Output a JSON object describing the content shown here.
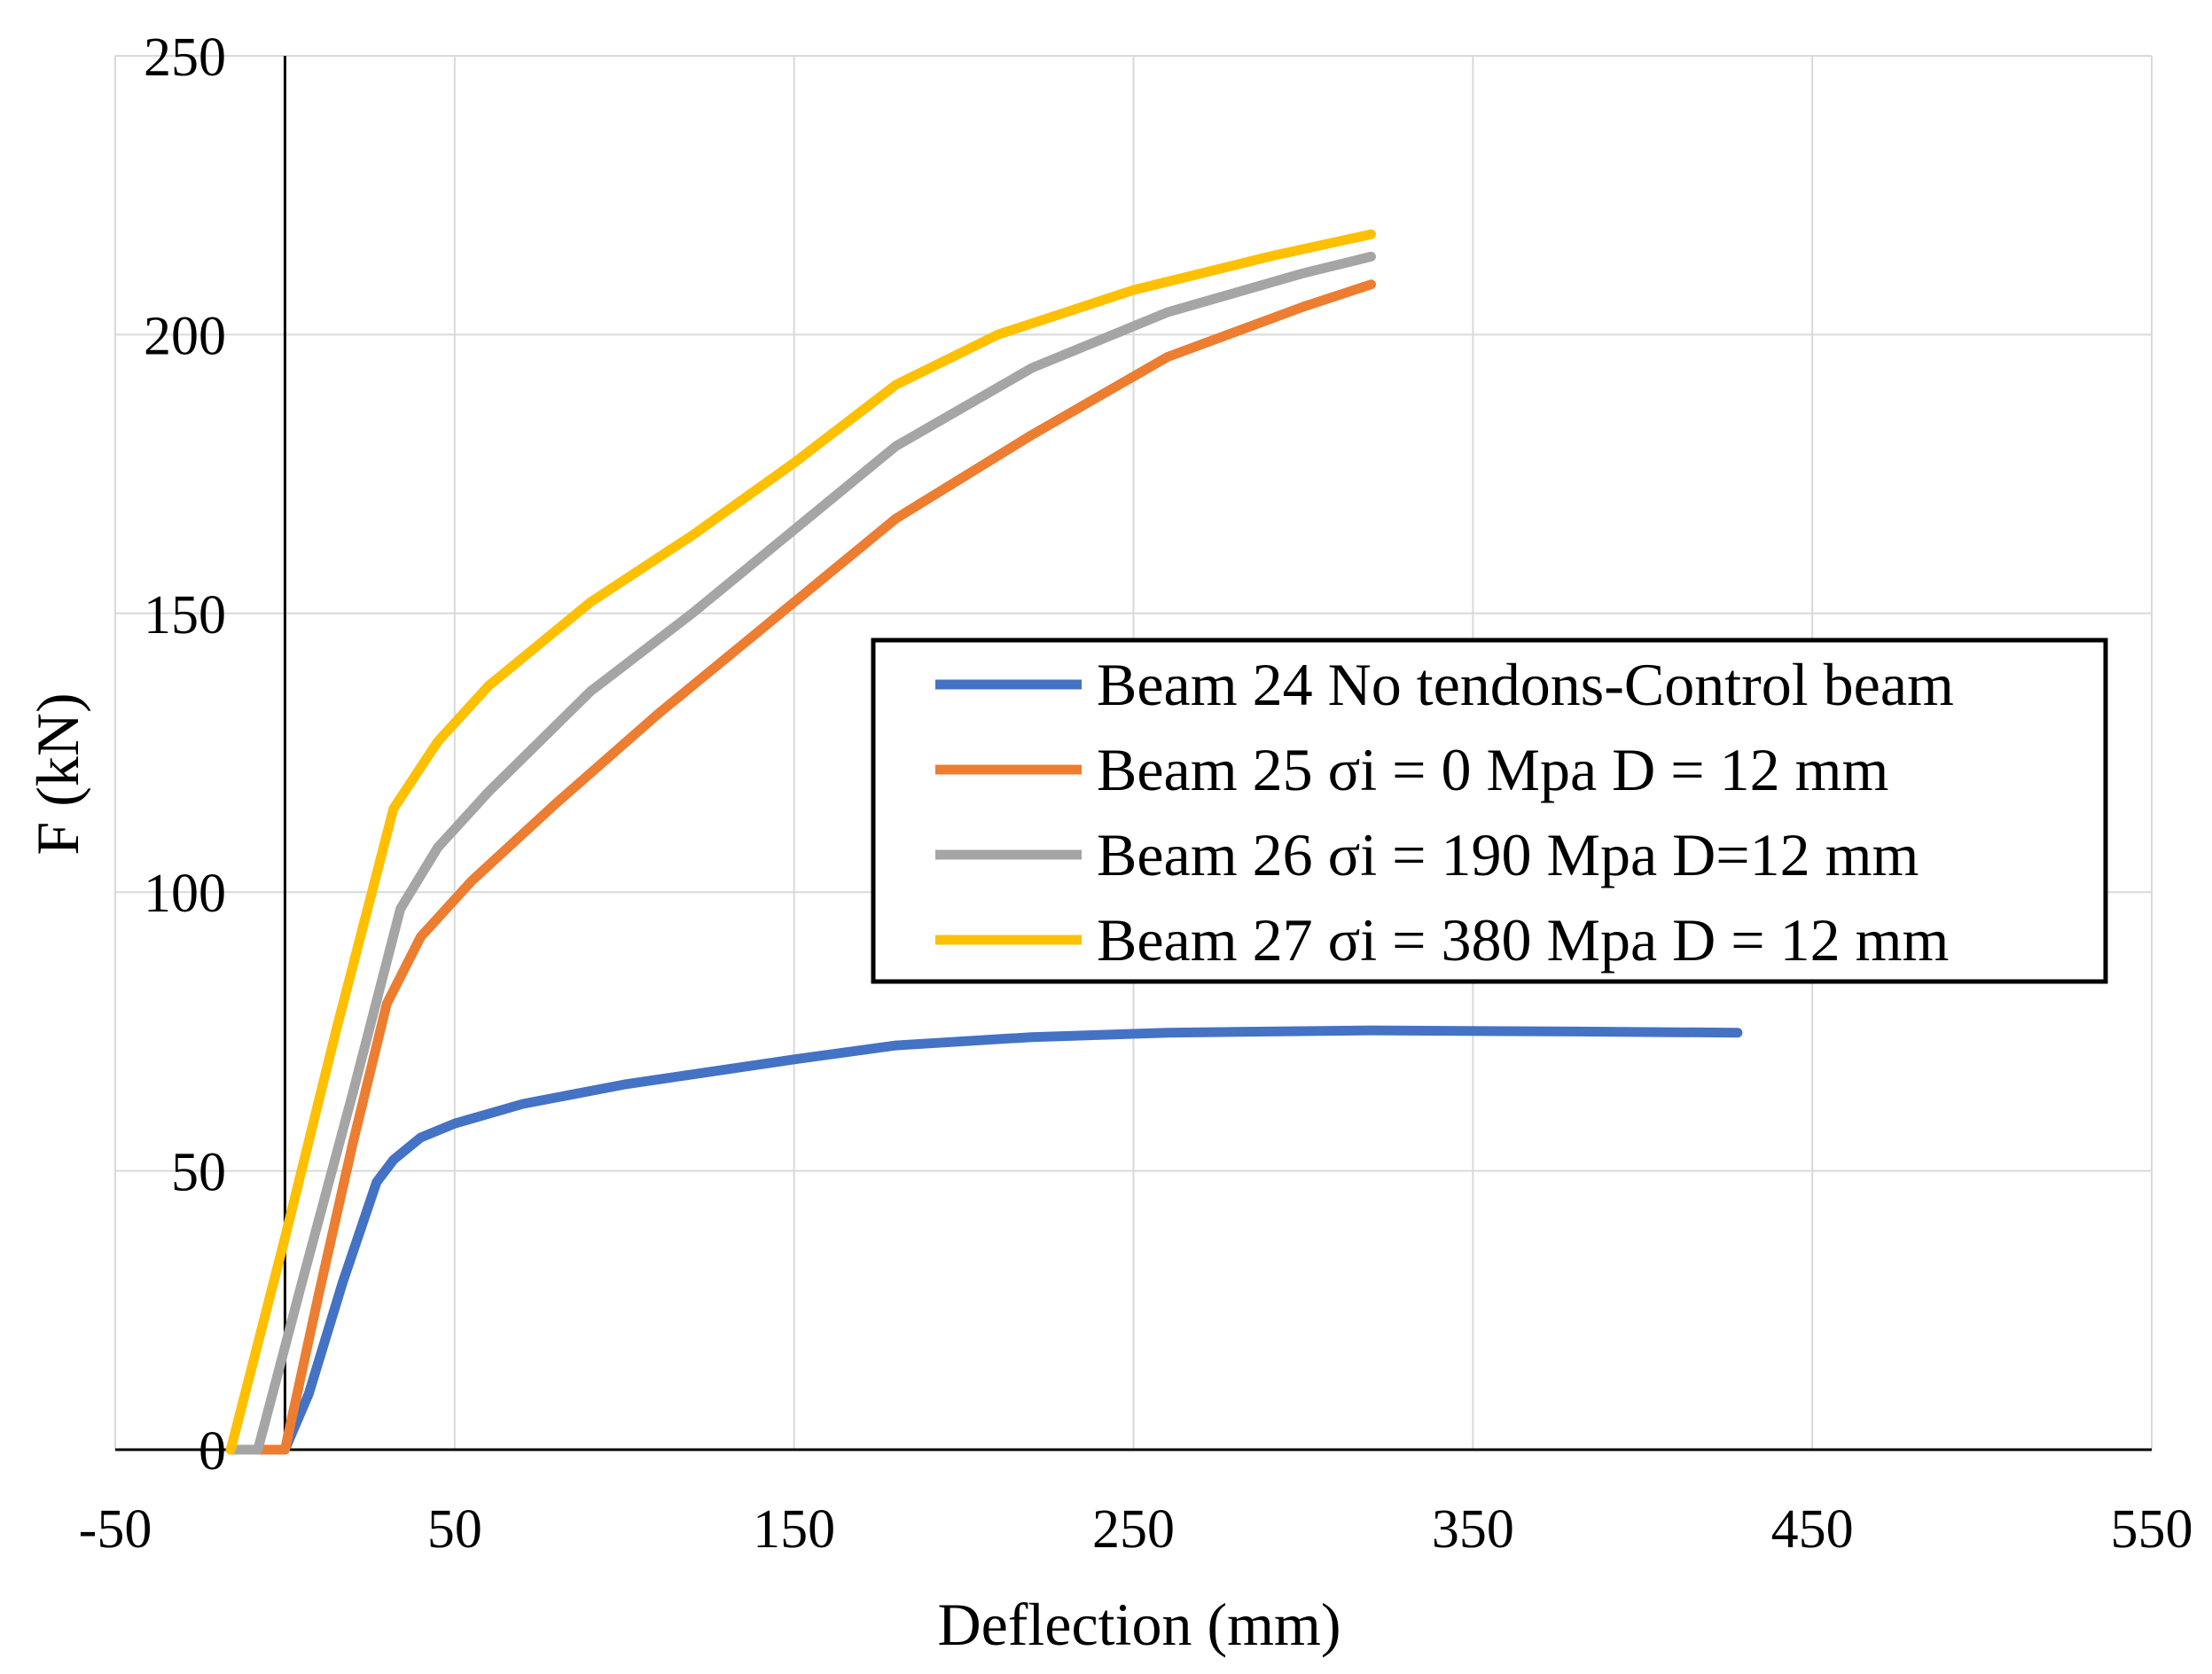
{
  "chart_data": {
    "type": "line",
    "title": "",
    "xlabel": "Deflection (mm)",
    "ylabel": "F (kN)",
    "xlim": [
      -50,
      550
    ],
    "ylim": [
      0,
      250
    ],
    "xticks": [
      -50,
      50,
      150,
      250,
      350,
      450,
      550
    ],
    "yticks": [
      0,
      50,
      100,
      150,
      200,
      250
    ],
    "grid": true,
    "legend_position": "center-right",
    "series": [
      {
        "name": "Beam 24 No tendons-Control beam",
        "color": "#4472C4",
        "points": [
          [
            0,
            0
          ],
          [
            7,
            10
          ],
          [
            17,
            30
          ],
          [
            27,
            48
          ],
          [
            32,
            52
          ],
          [
            40,
            56
          ],
          [
            50,
            58.5
          ],
          [
            70,
            62
          ],
          [
            100,
            65.5
          ],
          [
            150,
            70
          ],
          [
            180,
            72.5
          ],
          [
            220,
            74
          ],
          [
            260,
            74.8
          ],
          [
            320,
            75.2
          ],
          [
            380,
            75
          ],
          [
            428,
            74.8
          ]
        ]
      },
      {
        "name": "Beam 25 σi = 0 Mpa D = 12 mm",
        "color": "#ED7D31",
        "points": [
          [
            0,
            0
          ],
          [
            10,
            28
          ],
          [
            20,
            55
          ],
          [
            30,
            80
          ],
          [
            40,
            92
          ],
          [
            55,
            102
          ],
          [
            80,
            116
          ],
          [
            110,
            132
          ],
          [
            140,
            147
          ],
          [
            180,
            167
          ],
          [
            220,
            182
          ],
          [
            260,
            196
          ],
          [
            300,
            205
          ],
          [
            320,
            209
          ]
        ]
      },
      {
        "name": "Beam 26 σi = 190 Mpa D=12 mm",
        "color": "#A5A5A5",
        "points": [
          [
            -8,
            0
          ],
          [
            5,
            30
          ],
          [
            20,
            64
          ],
          [
            34,
            97
          ],
          [
            45,
            108
          ],
          [
            60,
            118
          ],
          [
            90,
            136
          ],
          [
            120,
            150
          ],
          [
            150,
            165
          ],
          [
            180,
            180
          ],
          [
            220,
            194
          ],
          [
            260,
            204
          ],
          [
            300,
            211
          ],
          [
            320,
            214
          ]
        ]
      },
      {
        "name": "Beam 27 σi = 380 Mpa D = 12 mm",
        "color": "#FFC000",
        "points": [
          [
            -16,
            0
          ],
          [
            0,
            38
          ],
          [
            15,
            75
          ],
          [
            32,
            115
          ],
          [
            45,
            127
          ],
          [
            60,
            137
          ],
          [
            90,
            152
          ],
          [
            120,
            164
          ],
          [
            150,
            177
          ],
          [
            180,
            191
          ],
          [
            210,
            200
          ],
          [
            250,
            208
          ],
          [
            290,
            214
          ],
          [
            320,
            218
          ]
        ]
      }
    ]
  }
}
